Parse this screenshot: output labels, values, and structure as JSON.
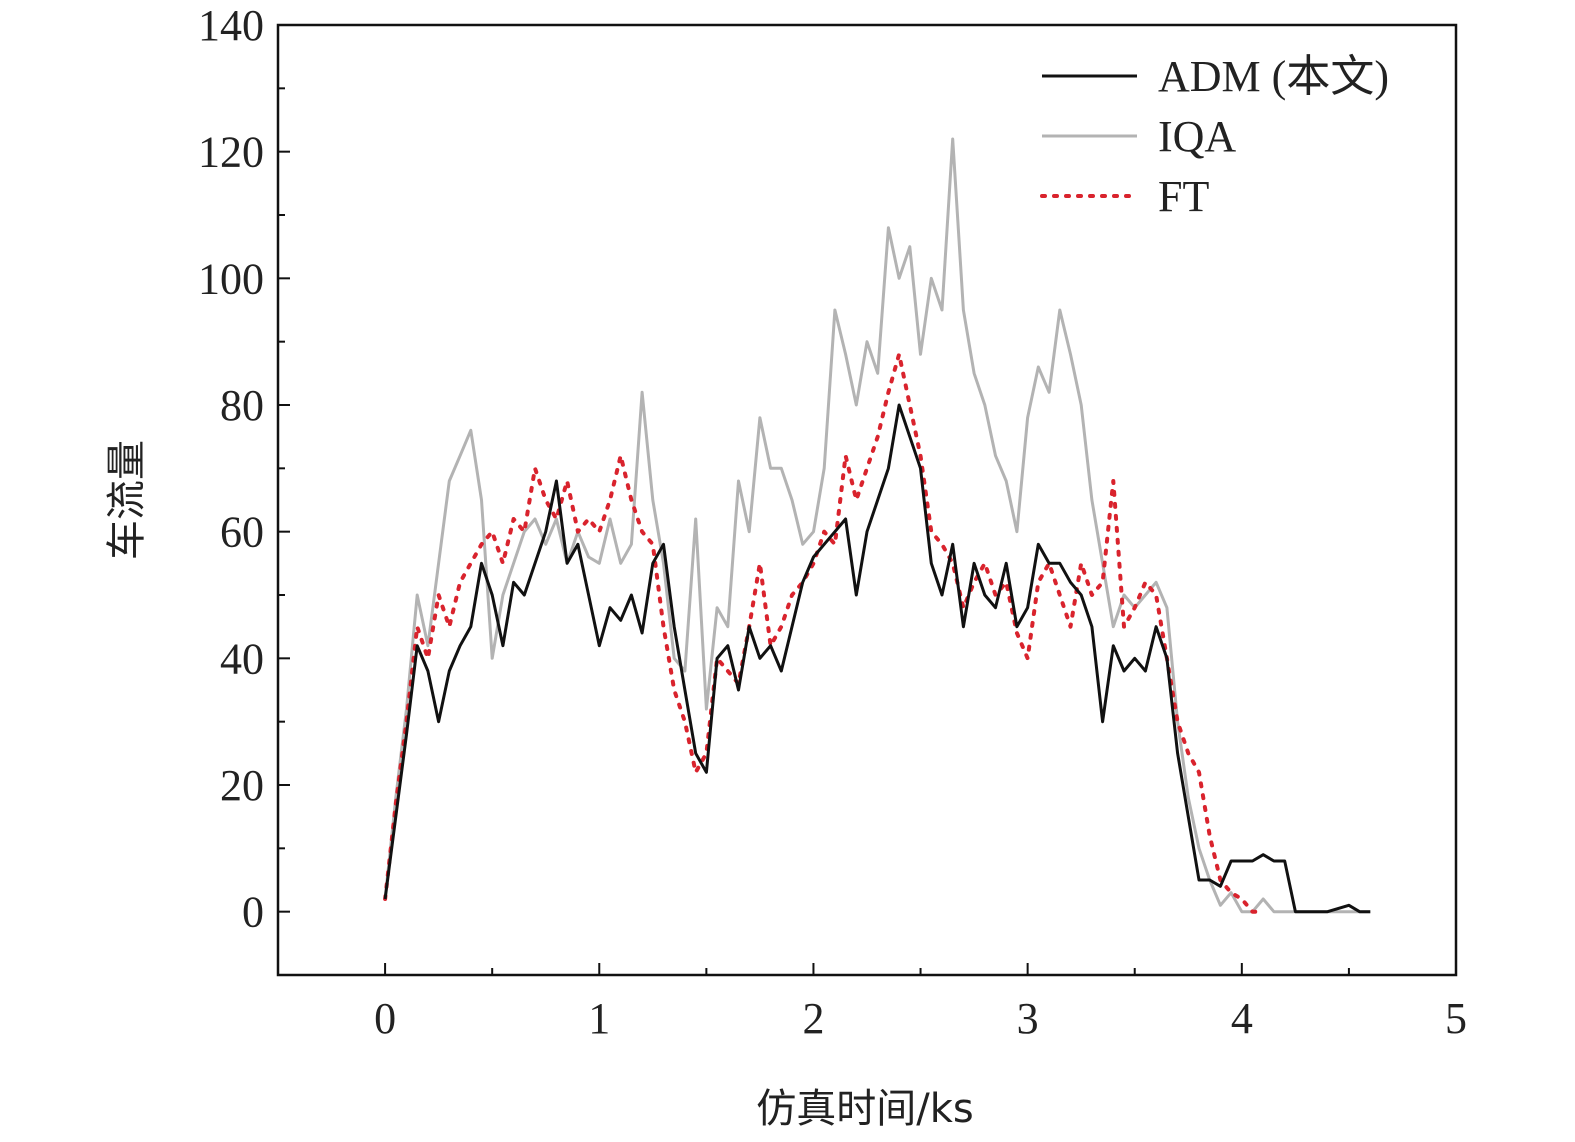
{
  "chart_data": {
    "type": "line",
    "title": "",
    "xlabel": "仿真时间/ks",
    "ylabel": "车流量",
    "xlim": [
      -0.5,
      5
    ],
    "ylim": [
      -10,
      140
    ],
    "xticks": [
      0,
      1,
      2,
      3,
      4,
      5
    ],
    "yticks": [
      0,
      20,
      40,
      60,
      80,
      100,
      120,
      140
    ],
    "grid": false,
    "legend_position": "top-right",
    "series": [
      {
        "name": "ADM (本文)",
        "color": "#111111",
        "style": "solid",
        "x": [
          0,
          0.05,
          0.1,
          0.15,
          0.2,
          0.25,
          0.3,
          0.35,
          0.4,
          0.45,
          0.5,
          0.55,
          0.6,
          0.65,
          0.7,
          0.75,
          0.8,
          0.85,
          0.9,
          0.95,
          1.0,
          1.05,
          1.1,
          1.15,
          1.2,
          1.25,
          1.3,
          1.35,
          1.4,
          1.45,
          1.5,
          1.55,
          1.6,
          1.65,
          1.7,
          1.75,
          1.8,
          1.85,
          1.9,
          1.95,
          2.0,
          2.05,
          2.1,
          2.15,
          2.2,
          2.25,
          2.3,
          2.35,
          2.4,
          2.45,
          2.5,
          2.55,
          2.6,
          2.65,
          2.7,
          2.75,
          2.8,
          2.85,
          2.9,
          2.95,
          3.0,
          3.05,
          3.1,
          3.15,
          3.2,
          3.25,
          3.3,
          3.35,
          3.4,
          3.45,
          3.5,
          3.55,
          3.6,
          3.65,
          3.7,
          3.75,
          3.8,
          3.85,
          3.9,
          3.95,
          4.0,
          4.05,
          4.1,
          4.15,
          4.2,
          4.25,
          4.3,
          4.4,
          4.5,
          4.55,
          4.6
        ],
        "values": [
          2,
          15,
          28,
          42,
          38,
          30,
          38,
          42,
          45,
          55,
          50,
          42,
          52,
          50,
          55,
          60,
          68,
          55,
          58,
          50,
          42,
          48,
          46,
          50,
          44,
          55,
          58,
          45,
          35,
          25,
          22,
          40,
          42,
          35,
          45,
          40,
          42,
          38,
          45,
          52,
          56,
          58,
          60,
          62,
          50,
          60,
          65,
          70,
          80,
          75,
          70,
          55,
          50,
          58,
          45,
          55,
          50,
          48,
          55,
          45,
          48,
          58,
          55,
          55,
          52,
          50,
          45,
          30,
          42,
          38,
          40,
          38,
          45,
          40,
          25,
          15,
          5,
          5,
          4,
          8,
          8,
          8,
          9,
          8,
          8,
          0,
          0,
          0,
          1,
          0,
          0
        ]
      },
      {
        "name": "IQA",
        "color": "#b3b3b3",
        "style": "solid",
        "x": [
          0,
          0.05,
          0.1,
          0.15,
          0.2,
          0.25,
          0.3,
          0.35,
          0.4,
          0.45,
          0.5,
          0.55,
          0.6,
          0.65,
          0.7,
          0.75,
          0.8,
          0.85,
          0.9,
          0.95,
          1.0,
          1.05,
          1.1,
          1.15,
          1.2,
          1.25,
          1.3,
          1.35,
          1.4,
          1.45,
          1.5,
          1.55,
          1.6,
          1.65,
          1.7,
          1.75,
          1.8,
          1.85,
          1.9,
          1.95,
          2.0,
          2.05,
          2.1,
          2.15,
          2.2,
          2.25,
          2.3,
          2.35,
          2.4,
          2.45,
          2.5,
          2.55,
          2.6,
          2.65,
          2.7,
          2.75,
          2.8,
          2.85,
          2.9,
          2.95,
          3.0,
          3.05,
          3.1,
          3.15,
          3.2,
          3.25,
          3.3,
          3.35,
          3.4,
          3.45,
          3.5,
          3.55,
          3.6,
          3.65,
          3.7,
          3.75,
          3.8,
          3.85,
          3.9,
          3.95,
          4.0,
          4.05,
          4.1,
          4.15,
          4.2,
          4.25,
          4.3,
          4.4,
          4.5,
          4.55,
          4.6
        ],
        "values": [
          2,
          18,
          32,
          50,
          42,
          55,
          68,
          72,
          76,
          65,
          40,
          50,
          55,
          60,
          62,
          58,
          62,
          55,
          60,
          56,
          55,
          62,
          55,
          58,
          82,
          65,
          55,
          40,
          38,
          62,
          32,
          48,
          45,
          68,
          60,
          78,
          70,
          70,
          65,
          58,
          60,
          70,
          95,
          88,
          80,
          90,
          85,
          108,
          100,
          105,
          88,
          100,
          95,
          122,
          95,
          85,
          80,
          72,
          68,
          60,
          78,
          86,
          82,
          95,
          88,
          80,
          65,
          55,
          45,
          50,
          48,
          50,
          52,
          48,
          30,
          18,
          10,
          5,
          1,
          3,
          0,
          0,
          2,
          0,
          0,
          0,
          0,
          0,
          0,
          0,
          0
        ]
      },
      {
        "name": "FT",
        "color": "#d9232d",
        "style": "dotted",
        "x": [
          0,
          0.05,
          0.1,
          0.15,
          0.2,
          0.25,
          0.3,
          0.35,
          0.4,
          0.45,
          0.5,
          0.55,
          0.6,
          0.65,
          0.7,
          0.75,
          0.8,
          0.85,
          0.9,
          0.95,
          1.0,
          1.05,
          1.1,
          1.15,
          1.2,
          1.25,
          1.3,
          1.35,
          1.4,
          1.45,
          1.5,
          1.55,
          1.6,
          1.65,
          1.7,
          1.75,
          1.8,
          1.85,
          1.9,
          1.95,
          2.0,
          2.05,
          2.1,
          2.15,
          2.2,
          2.25,
          2.3,
          2.35,
          2.4,
          2.45,
          2.5,
          2.55,
          2.6,
          2.65,
          2.7,
          2.75,
          2.8,
          2.85,
          2.9,
          2.95,
          3.0,
          3.05,
          3.1,
          3.15,
          3.2,
          3.25,
          3.3,
          3.35,
          3.4,
          3.45,
          3.5,
          3.55,
          3.6,
          3.65,
          3.7,
          3.75,
          3.8,
          3.85,
          3.9,
          3.95,
          4.0,
          4.05,
          4.1
        ],
        "values": [
          2,
          17,
          30,
          45,
          40,
          50,
          45,
          52,
          55,
          58,
          60,
          55,
          62,
          60,
          70,
          65,
          62,
          68,
          60,
          62,
          60,
          65,
          72,
          65,
          60,
          58,
          45,
          35,
          30,
          22,
          25,
          40,
          38,
          36,
          45,
          55,
          42,
          45,
          50,
          52,
          55,
          60,
          58,
          72,
          65,
          70,
          75,
          82,
          88,
          80,
          72,
          60,
          58,
          55,
          48,
          52,
          55,
          50,
          52,
          44,
          40,
          52,
          55,
          50,
          45,
          55,
          50,
          52,
          68,
          45,
          48,
          52,
          50,
          40,
          30,
          25,
          22,
          12,
          5,
          3,
          2,
          0,
          0
        ]
      }
    ]
  }
}
